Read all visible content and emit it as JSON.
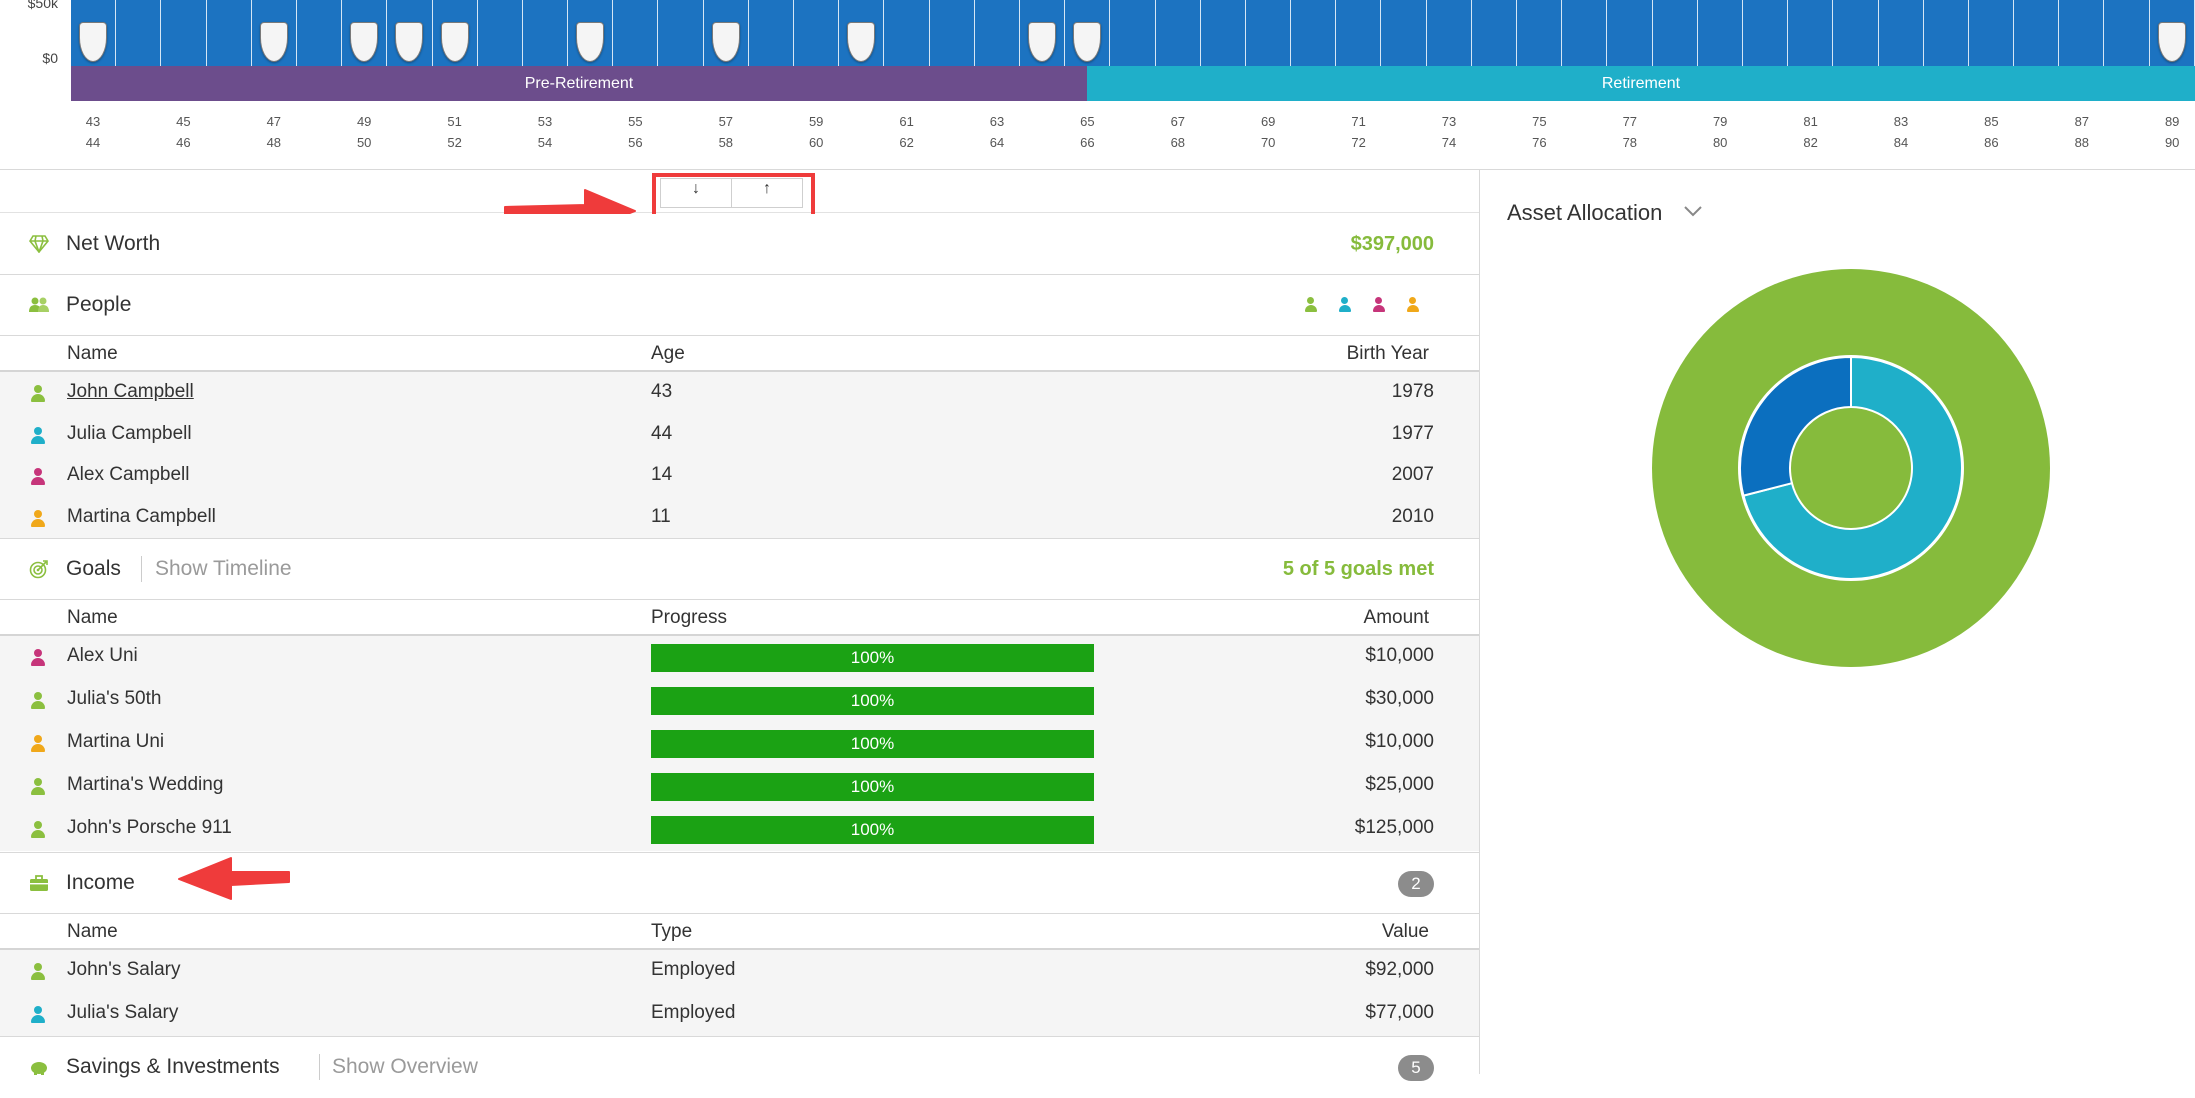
{
  "timeline": {
    "y_labels": [
      "$50k",
      "$0"
    ],
    "phases": {
      "pre_retirement": "Pre-Retirement",
      "retirement": "Retirement"
    },
    "ages_top": [
      "43",
      "45",
      "47",
      "49",
      "51",
      "53",
      "55",
      "57",
      "59",
      "61",
      "63",
      "65",
      "67",
      "69",
      "71",
      "73",
      "75",
      "77",
      "79",
      "81",
      "83",
      "85",
      "87",
      "89"
    ],
    "ages_bottom": [
      "44",
      "46",
      "48",
      "50",
      "52",
      "54",
      "56",
      "58",
      "60",
      "62",
      "64",
      "66",
      "68",
      "70",
      "72",
      "74",
      "76",
      "78",
      "80",
      "82",
      "84",
      "86",
      "88",
      "90"
    ],
    "bar_count": 47,
    "goal_marker_bars": [
      0,
      4,
      6,
      7,
      8,
      11,
      14,
      17,
      21,
      22,
      46
    ]
  },
  "sort": {
    "down_icon": "arrow-down-icon",
    "up_icon": "arrow-up-icon",
    "down_glyph": "↓",
    "up_glyph": "↑"
  },
  "net_worth": {
    "title": "Net Worth",
    "value": "$397,000"
  },
  "people": {
    "title": "People",
    "columns": [
      "Name",
      "Age",
      "Birth Year"
    ],
    "rows": [
      {
        "name": "John Campbell",
        "age": "43",
        "birth_year": "1978",
        "color": "#8bbf3f"
      },
      {
        "name": "Julia Campbell",
        "age": "44",
        "birth_year": "1977",
        "color": "#1fafc9"
      },
      {
        "name": "Alex Campbell",
        "age": "14",
        "birth_year": "2007",
        "color": "#c6357a"
      },
      {
        "name": "Martina Campbell",
        "age": "11",
        "birth_year": "2010",
        "color": "#f0a81a"
      }
    ]
  },
  "goals": {
    "title": "Goals",
    "link": "Show Timeline",
    "summary": "5 of 5 goals met",
    "columns": [
      "Name",
      "Progress",
      "Amount"
    ],
    "rows": [
      {
        "name": "Alex Uni",
        "progress": "100%",
        "amount": "$10,000",
        "color": "#c6357a"
      },
      {
        "name": "Julia's 50th",
        "progress": "100%",
        "amount": "$30,000",
        "color": "#8bbf3f"
      },
      {
        "name": "Martina Uni",
        "progress": "100%",
        "amount": "$10,000",
        "color": "#f0a81a"
      },
      {
        "name": "Martina's Wedding",
        "progress": "100%",
        "amount": "$25,000",
        "color": "#8bbf3f"
      },
      {
        "name": "John's Porsche 911",
        "progress": "100%",
        "amount": "$125,000",
        "color": "#8bbf3f"
      }
    ]
  },
  "income": {
    "title": "Income",
    "count": "2",
    "columns": [
      "Name",
      "Type",
      "Value"
    ],
    "rows": [
      {
        "name": "John's Salary",
        "type": "Employed",
        "value": "$92,000",
        "color": "#8bbf3f"
      },
      {
        "name": "Julia's Salary",
        "type": "Employed",
        "value": "$77,000",
        "color": "#1fafc9"
      }
    ]
  },
  "savings": {
    "title": "Savings & Investments",
    "link": "Show Overview",
    "count": "5"
  },
  "asset_allocation": {
    "title": "Asset Allocation",
    "outer_color": "#86bb3c",
    "inner_segments": [
      {
        "share": 0.71,
        "color": "#1fafc9"
      },
      {
        "share": 0.29,
        "color": "#0b6fbf"
      }
    ]
  }
}
